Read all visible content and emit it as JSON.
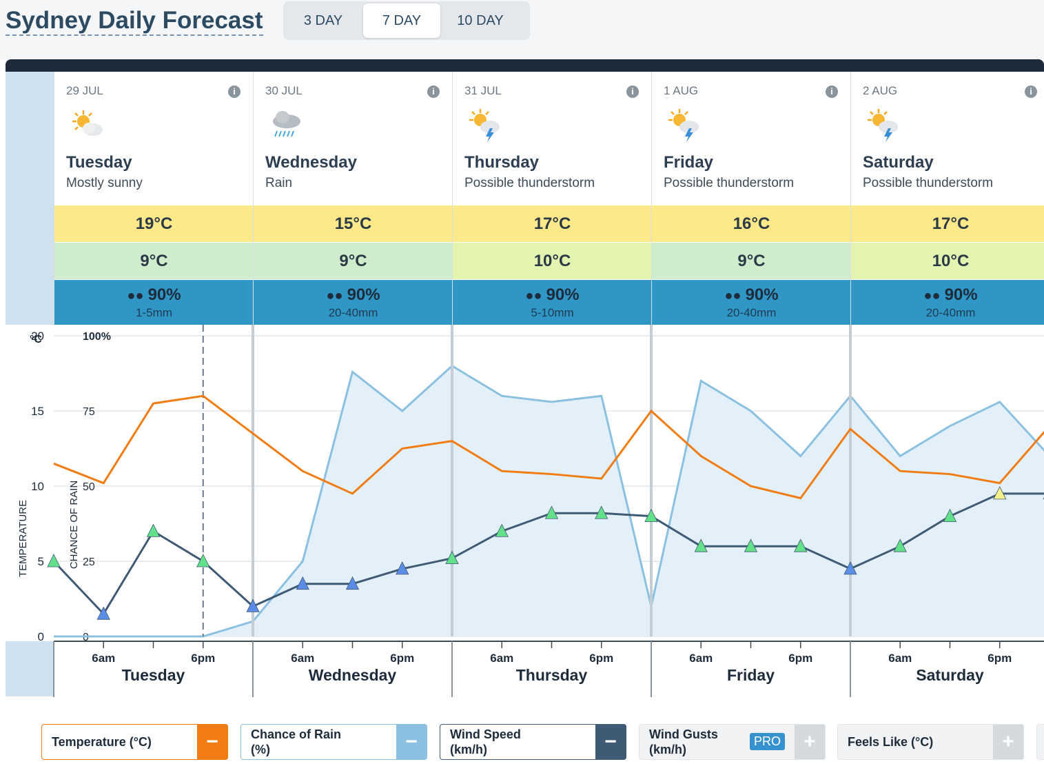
{
  "page_title": "Sydney Daily Forecast",
  "range_tabs": [
    {
      "label": "3 DAY",
      "active": false
    },
    {
      "label": "7 DAY",
      "active": true
    },
    {
      "label": "10 DAY",
      "active": false
    }
  ],
  "days": [
    {
      "date": "29 JUL",
      "name": "Tuesday",
      "condition": "Mostly sunny",
      "icon": "mostly-sunny-icon",
      "max": "19°C",
      "min": "9°C",
      "min_color": "#cfeccd",
      "rain_pct": "90%",
      "rain_amt": "1-5mm"
    },
    {
      "date": "30 JUL",
      "name": "Wednesday",
      "condition": "Rain",
      "icon": "rain-icon",
      "max": "15°C",
      "min": "9°C",
      "min_color": "#cfeccd",
      "rain_pct": "90%",
      "rain_amt": "20-40mm"
    },
    {
      "date": "31 JUL",
      "name": "Thursday",
      "condition": "Possible thunderstorm",
      "icon": "thunderstorm-icon",
      "max": "17°C",
      "min": "10°C",
      "min_color": "#e3f3b0",
      "rain_pct": "90%",
      "rain_amt": "5-10mm"
    },
    {
      "date": "1 AUG",
      "name": "Friday",
      "condition": "Possible thunderstorm",
      "icon": "thunderstorm-icon",
      "max": "16°C",
      "min": "9°C",
      "min_color": "#cfeccd",
      "rain_pct": "90%",
      "rain_amt": "20-40mm"
    },
    {
      "date": "2 AUG",
      "name": "Saturday",
      "condition": "Possible thunderstorm",
      "icon": "thunderstorm-icon",
      "max": "17°C",
      "min": "10°C",
      "min_color": "#e3f3b0",
      "rain_pct": "90%",
      "rain_amt": "20-40mm"
    }
  ],
  "chart_data": {
    "type": "line",
    "y_left_unit": "°C",
    "y_left_label": "TEMPERATURE",
    "y_left_ticks": [
      "20",
      "15",
      "10",
      "5",
      "0"
    ],
    "y_left_range": [
      0,
      20
    ],
    "y_right_label": "CHANCE OF RAIN",
    "y_right_ticks": [
      "100%",
      "75",
      "50",
      "25",
      "0"
    ],
    "y_right_range": [
      0,
      100
    ],
    "x_time_labels": [
      "6am",
      "6pm"
    ],
    "x_day_labels": [
      "Tuesday",
      "Wednesday",
      "Thursday",
      "Friday",
      "Saturday"
    ],
    "hours": [
      0,
      6,
      12,
      18,
      24,
      30,
      36,
      42,
      48,
      54,
      60,
      66,
      72,
      78,
      84,
      90,
      96,
      102,
      108,
      114,
      120
    ],
    "series": [
      {
        "name": "Temperature (°C)",
        "color": "#f07c12",
        "values": [
          11.5,
          10.2,
          15.5,
          16.0,
          13.5,
          11.0,
          9.5,
          12.5,
          13.0,
          11.0,
          10.8,
          10.5,
          15.0,
          12.0,
          10.0,
          9.2,
          13.8,
          11.0,
          10.8,
          10.2,
          14.0
        ]
      },
      {
        "name": "Chance of Rain (%)",
        "color": "#8cc0e0",
        "values": [
          0,
          0,
          0,
          0,
          5,
          25,
          88,
          75,
          90,
          80,
          78,
          80,
          10,
          85,
          75,
          60,
          80,
          60,
          70,
          78,
          60
        ]
      },
      {
        "name": "Wind Speed (km/h)",
        "color": "#3f5a74",
        "values": [
          5.0,
          1.5,
          7.0,
          5.0,
          2.0,
          3.5,
          3.5,
          4.5,
          5.2,
          7.0,
          8.2,
          8.2,
          8.0,
          6.0,
          6.0,
          6.0,
          4.5,
          6.0,
          8.0,
          9.5,
          9.5
        ]
      }
    ]
  },
  "legend": [
    {
      "label": "Temperature (°C)",
      "border": "#f07c12",
      "toggle_bg": "#f07c12",
      "toggle": "−",
      "pro": false
    },
    {
      "label": "Chance of Rain (%)",
      "border": "#8cc0e0",
      "toggle_bg": "#8cc0e0",
      "toggle": "−",
      "pro": false
    },
    {
      "label": "Wind Speed (km/h)",
      "border": "#3f5a74",
      "toggle_bg": "#3f5a74",
      "toggle": "−",
      "pro": false
    },
    {
      "label": "Wind Gusts (km/h)",
      "border": "#e0e4e8",
      "toggle_bg": "#d4d9de",
      "toggle": "+",
      "pro": true,
      "pro_label": "PRO"
    },
    {
      "label": "Feels Like (°C)",
      "border": "#e0e4e8",
      "toggle_bg": "#d4d9de",
      "toggle": "+",
      "pro": false
    }
  ]
}
